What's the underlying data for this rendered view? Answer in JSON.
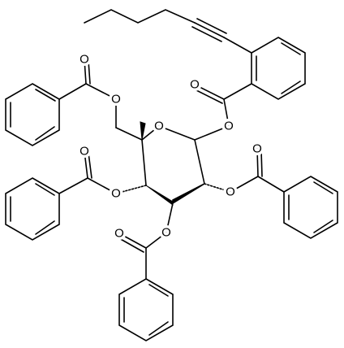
{
  "labels": [
    "O",
    "O",
    "O",
    "O",
    "O",
    "O",
    "O",
    "O",
    "O",
    "O",
    "O"
  ]
}
